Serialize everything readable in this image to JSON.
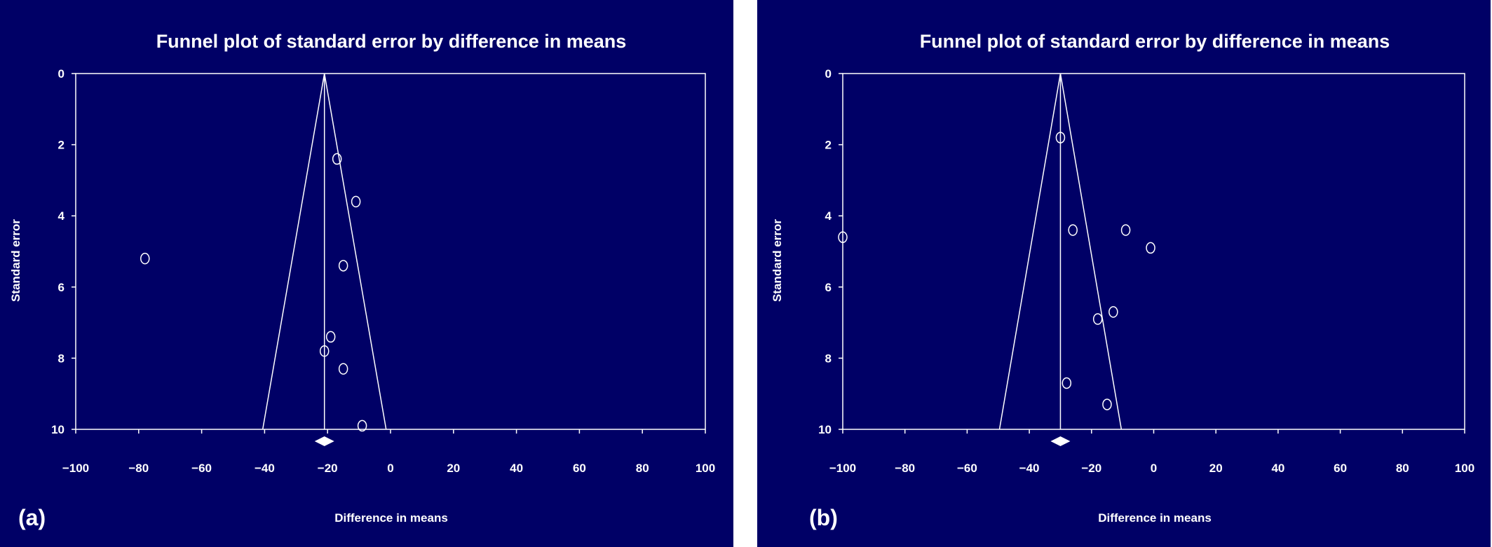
{
  "colors": {
    "background": "#000066",
    "foreground": "#ffffff"
  },
  "chart_data": [
    {
      "panel": "(a)",
      "type": "scatter",
      "title": "Funnel plot of standard error by difference in means",
      "xlabel": "Difference in means",
      "ylabel": "Standard error",
      "xlim": [
        -100,
        100
      ],
      "ylim": [
        10,
        0
      ],
      "x_ticks": [
        "−100",
        "−80",
        "−60",
        "−40",
        "−20",
        "0",
        "20",
        "40",
        "60",
        "80",
        "100"
      ],
      "y_ticks": [
        "0",
        "2",
        "4",
        "6",
        "8",
        "10"
      ],
      "pooled_estimate": -21,
      "funnel": {
        "apex": [
          -21,
          0
        ],
        "base_left": [
          -40.6,
          10
        ],
        "base_right": [
          -1.4,
          10
        ]
      },
      "points": [
        {
          "x": -17,
          "y": 2.4
        },
        {
          "x": -11,
          "y": 3.6
        },
        {
          "x": -78,
          "y": 5.2
        },
        {
          "x": -15,
          "y": 5.4
        },
        {
          "x": -19,
          "y": 7.4
        },
        {
          "x": -21,
          "y": 7.8
        },
        {
          "x": -15,
          "y": 8.3
        },
        {
          "x": -9,
          "y": 9.9
        }
      ],
      "grid": false,
      "legend": "none"
    },
    {
      "panel": "(b)",
      "type": "scatter",
      "title": "Funnel plot of standard error by difference in means",
      "xlabel": "Difference in means",
      "ylabel": "Standard error",
      "xlim": [
        -100,
        100
      ],
      "ylim": [
        10,
        0
      ],
      "x_ticks": [
        "−100",
        "−80",
        "−60",
        "−40",
        "−20",
        "0",
        "20",
        "40",
        "60",
        "80",
        "100"
      ],
      "y_ticks": [
        "0",
        "2",
        "4",
        "6",
        "8",
        "10"
      ],
      "pooled_estimate": -30,
      "funnel": {
        "apex": [
          -30,
          0
        ],
        "base_left": [
          -49.6,
          10
        ],
        "base_right": [
          -10.4,
          10
        ]
      },
      "points": [
        {
          "x": -30,
          "y": 1.8
        },
        {
          "x": -26,
          "y": 4.4
        },
        {
          "x": -9,
          "y": 4.4
        },
        {
          "x": -100,
          "y": 4.6
        },
        {
          "x": -1,
          "y": 4.9
        },
        {
          "x": -13,
          "y": 6.7
        },
        {
          "x": -18,
          "y": 6.9
        },
        {
          "x": -28,
          "y": 8.7
        },
        {
          "x": -15,
          "y": 9.3
        }
      ],
      "grid": false,
      "legend": "none"
    }
  ]
}
